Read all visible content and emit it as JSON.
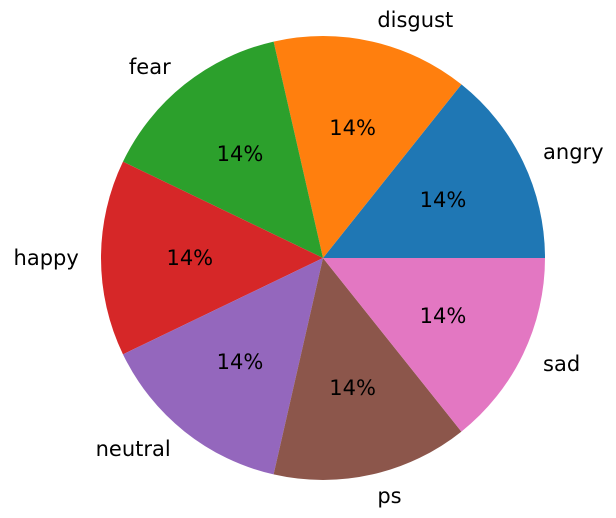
{
  "chart_data": {
    "type": "pie",
    "categories": [
      "angry",
      "disgust",
      "fear",
      "happy",
      "neutral",
      "ps",
      "sad"
    ],
    "values": [
      14.29,
      14.29,
      14.29,
      14.29,
      14.29,
      14.29,
      14.29
    ],
    "value_labels": [
      "14%",
      "14%",
      "14%",
      "14%",
      "14%",
      "14%",
      "14%"
    ],
    "colors": [
      "#1f77b4",
      "#ff7f0e",
      "#2ca02c",
      "#d62728",
      "#9467bd",
      "#8c564b",
      "#e377c2"
    ],
    "start_angle_deg": 0,
    "direction": "counterclockwise",
    "legend": "none",
    "title": ""
  }
}
